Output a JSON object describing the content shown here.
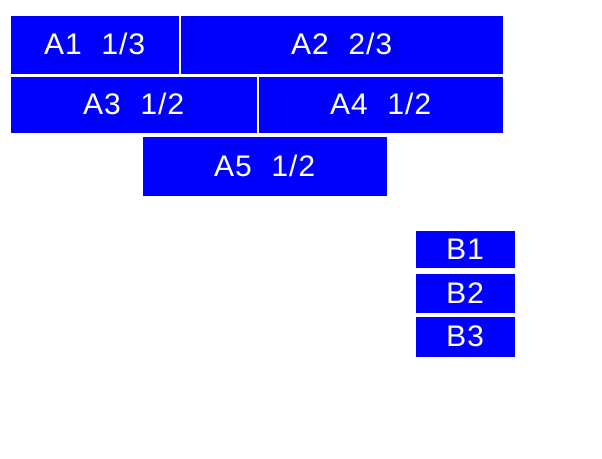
{
  "colors": {
    "box_background": "#0000ff",
    "box_text": "#ffffff",
    "page_background": "#ffffff"
  },
  "boxes_a": [
    {
      "name": "A1",
      "text": "A1  1/3"
    },
    {
      "name": "A2",
      "text": "A2  2/3"
    },
    {
      "name": "A3",
      "text": "A3  1/2"
    },
    {
      "name": "A4",
      "text": "A4  1/2"
    },
    {
      "name": "A5",
      "text": "A5  1/2"
    }
  ],
  "boxes_b": [
    {
      "name": "B1",
      "text": "B1"
    },
    {
      "name": "B2",
      "text": "B2"
    },
    {
      "name": "B3",
      "text": "B3"
    }
  ]
}
